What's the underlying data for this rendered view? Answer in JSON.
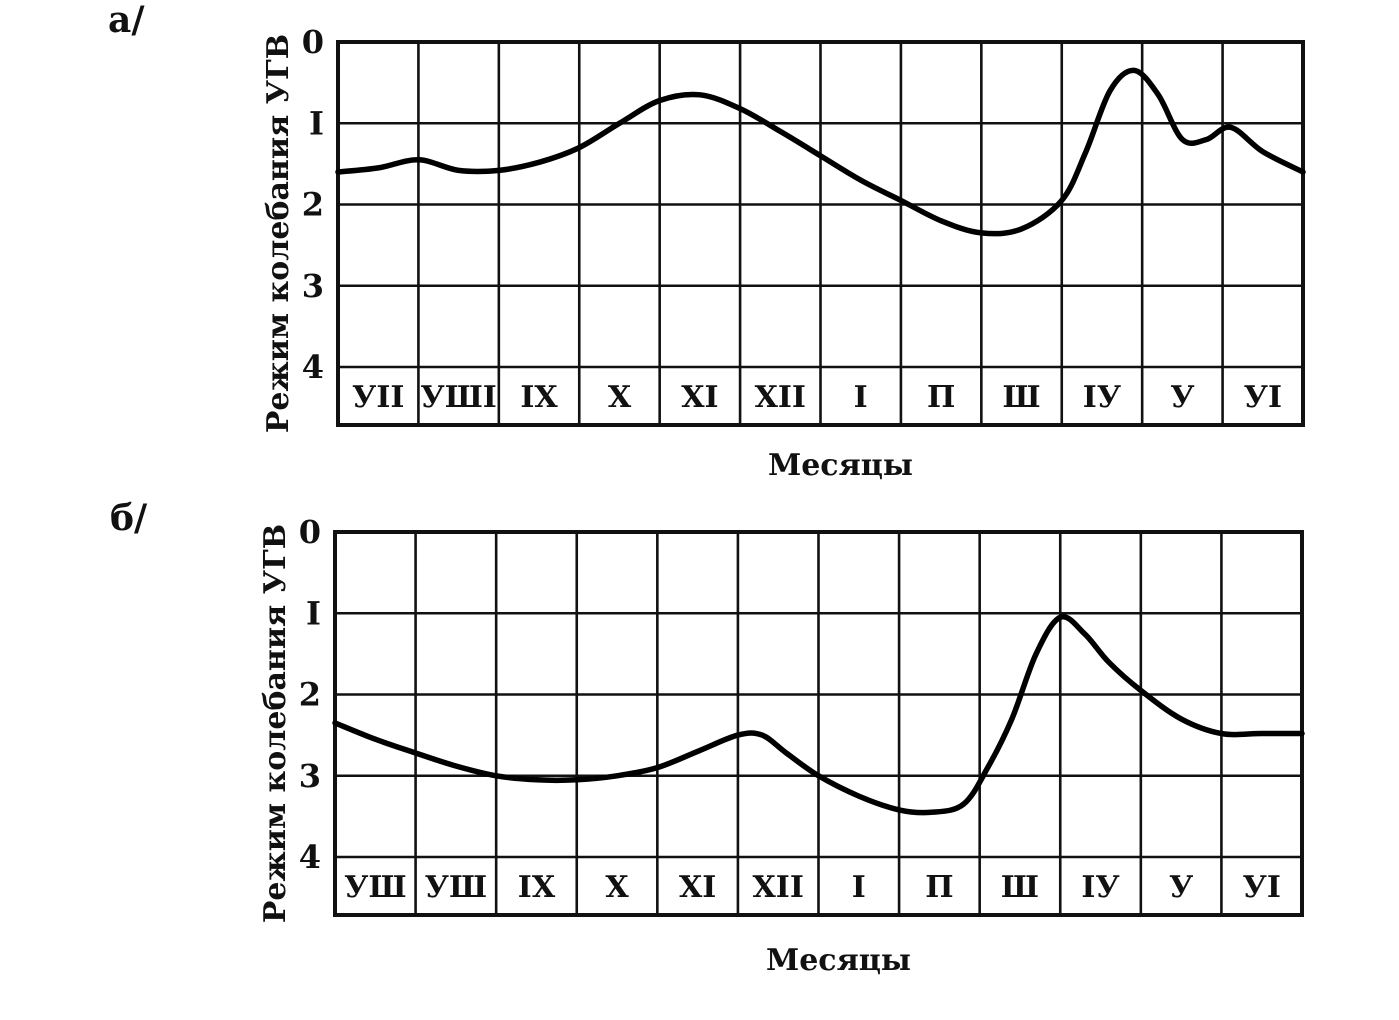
{
  "chart_data": [
    {
      "type": "line",
      "panel_label": "а/",
      "title": "",
      "xlabel": "Месяцы",
      "ylabel": "Режим колебания УГВ",
      "y_ticks": [
        "0",
        "I",
        "2",
        "3",
        "4"
      ],
      "ylim": [
        0,
        4
      ],
      "y_inverted": true,
      "grid": true,
      "categories": [
        "УII",
        "УШI",
        "IX",
        "X",
        "XI",
        "XII",
        "I",
        "П",
        "Ш",
        "IУ",
        "У",
        "УI"
      ],
      "series": [
        {
          "x": [
            0,
            0.5,
            1.0,
            1.5,
            2.0,
            2.5,
            3.0,
            3.5,
            4.0,
            4.5,
            5.0,
            5.5,
            6.0,
            6.5,
            7.0,
            7.5,
            8.0,
            8.5,
            9.0,
            9.3,
            9.6,
            9.9,
            10.2,
            10.5,
            10.8,
            11.1,
            11.5,
            12.0
          ],
          "values": [
            1.6,
            1.55,
            1.45,
            1.58,
            1.58,
            1.48,
            1.3,
            1.0,
            0.72,
            0.65,
            0.82,
            1.1,
            1.4,
            1.7,
            1.95,
            2.2,
            2.35,
            2.3,
            1.95,
            1.35,
            0.6,
            0.35,
            0.65,
            1.2,
            1.2,
            1.05,
            1.35,
            1.6
          ]
        }
      ]
    },
    {
      "type": "line",
      "panel_label": "б/",
      "title": "",
      "xlabel": "Месяцы",
      "ylabel": "Режим колебания УГВ",
      "y_ticks": [
        "0",
        "I",
        "2",
        "3",
        "4"
      ],
      "ylim": [
        0,
        4
      ],
      "y_inverted": true,
      "grid": true,
      "categories": [
        "УШ",
        "УШ",
        "IX",
        "X",
        "XI",
        "XII",
        "I",
        "П",
        "Ш",
        "IУ",
        "У",
        "УI"
      ],
      "series": [
        {
          "x": [
            0,
            0.5,
            1.0,
            1.5,
            2.0,
            2.5,
            3.0,
            3.5,
            4.0,
            4.5,
            5.0,
            5.3,
            5.6,
            6.0,
            6.5,
            7.0,
            7.4,
            7.8,
            8.1,
            8.4,
            8.7,
            9.0,
            9.3,
            9.6,
            10.0,
            10.5,
            11.0,
            11.5,
            12.0
          ],
          "values": [
            2.35,
            2.55,
            2.72,
            2.88,
            3.0,
            3.05,
            3.05,
            3.0,
            2.9,
            2.7,
            2.5,
            2.5,
            2.72,
            3.0,
            3.25,
            3.42,
            3.45,
            3.35,
            2.9,
            2.3,
            1.5,
            1.05,
            1.25,
            1.6,
            1.95,
            2.3,
            2.48,
            2.48,
            2.48
          ]
        }
      ]
    }
  ]
}
